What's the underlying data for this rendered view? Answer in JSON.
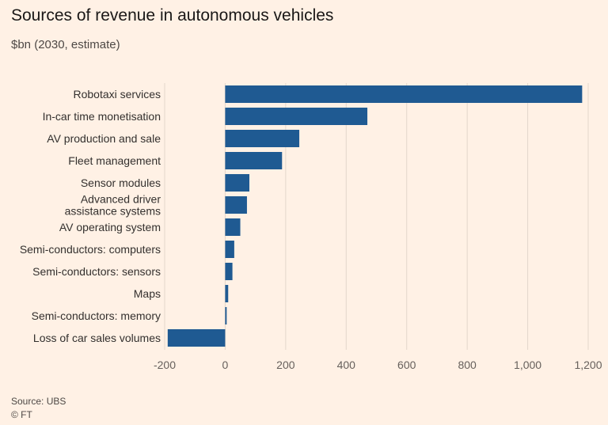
{
  "header": {
    "title": "Sources of revenue in autonomous vehicles",
    "subtitle": "$bn (2030, estimate)"
  },
  "footer": {
    "source": "Source: UBS",
    "copyright": "© FT"
  },
  "colors": {
    "background": "#fff1e5",
    "bar": "#1f5a92",
    "grid": "#e3d6cb",
    "text": "#33302e",
    "axis_text": "#66605c"
  },
  "chart_data": {
    "type": "bar",
    "orientation": "horizontal",
    "title": "Sources of revenue in autonomous vehicles",
    "subtitle": "$bn (2030, estimate)",
    "xlabel": "",
    "ylabel": "",
    "xlim": [
      -200,
      1200
    ],
    "xticks": [
      -200,
      0,
      200,
      400,
      600,
      800,
      1000,
      1200
    ],
    "xtick_labels": [
      "-200",
      "0",
      "200",
      "400",
      "600",
      "800",
      "1,000",
      "1,200"
    ],
    "grid": "vertical",
    "categories": [
      [
        "Robotaxi services"
      ],
      [
        "In-car time monetisation"
      ],
      [
        "AV production and sale"
      ],
      [
        "Fleet management"
      ],
      [
        "Sensor modules"
      ],
      [
        "Advanced driver",
        "assistance systems"
      ],
      [
        "AV operating system"
      ],
      [
        "Semi-conductors: computers"
      ],
      [
        "Semi-conductors: sensors"
      ],
      [
        "Maps"
      ],
      [
        "Semi-conductors: memory"
      ],
      [
        "Loss of car sales volumes"
      ]
    ],
    "values": [
      1180,
      470,
      245,
      188,
      80,
      72,
      50,
      30,
      24,
      10,
      5,
      -190
    ]
  }
}
